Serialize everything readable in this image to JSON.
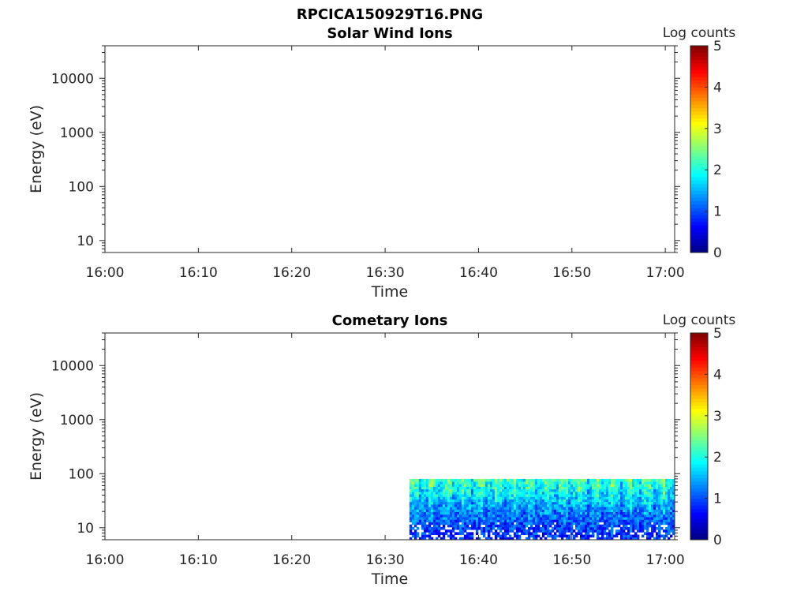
{
  "figure": {
    "main_title": "RPCICA150929T16.PNG"
  },
  "chart_data": [
    {
      "type": "heatmap",
      "title": "Solar Wind Ions",
      "xlabel": "Time",
      "ylabel": "Energy (eV)",
      "xticks": [
        "16:00",
        "16:10",
        "16:20",
        "16:30",
        "16:40",
        "16:50",
        "17:00"
      ],
      "yticks": [
        "10",
        "100",
        "1000",
        "10000"
      ],
      "yscale": "log",
      "ylim": [
        6,
        40000
      ],
      "xlim": [
        "16:00",
        "17:01"
      ],
      "colorbar": {
        "label": "Log counts",
        "ticks": [
          "0",
          "1",
          "2",
          "3",
          "4",
          "5"
        ],
        "range": [
          0,
          5
        ],
        "colormap": "jet"
      },
      "data_present": false
    },
    {
      "type": "heatmap",
      "title": "Cometary Ions",
      "xlabel": "Time",
      "ylabel": "Energy (eV)",
      "xticks": [
        "16:00",
        "16:10",
        "16:20",
        "16:30",
        "16:40",
        "16:50",
        "17:00"
      ],
      "yticks": [
        "10",
        "100",
        "1000",
        "10000"
      ],
      "yscale": "log",
      "ylim": [
        6,
        40000
      ],
      "xlim": [
        "16:00",
        "17:01"
      ],
      "colorbar": {
        "label": "Log counts",
        "ticks": [
          "0",
          "1",
          "2",
          "3",
          "4",
          "5"
        ],
        "range": [
          0,
          5
        ],
        "colormap": "jet"
      },
      "data_present": true,
      "data_time_range": [
        "16:32.6",
        "17:01"
      ],
      "data_energy_range": [
        6,
        80
      ],
      "typical_log_counts": {
        "low_energy": 0.8,
        "high_energy": 2.2
      }
    }
  ]
}
